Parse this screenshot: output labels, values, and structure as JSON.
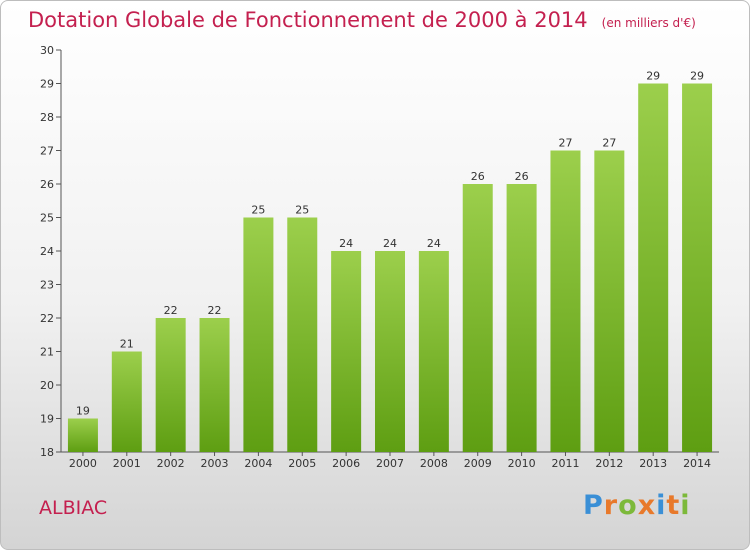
{
  "title": "Dotation Globale de Fonctionnement de 2000 à 2014",
  "unit": "(en milliers d'€)",
  "commune": "ALBIAC",
  "logo_text": "Proxiti",
  "colors": {
    "title": "#c4204f",
    "bar_top": "#9ccf4c",
    "bar_bottom": "#5e9e12",
    "logo": [
      "#3a8fd6",
      "#e8792b",
      "#7cb93a",
      "#e8792b",
      "#3a8fd6",
      "#e8792b",
      "#7cb93a"
    ]
  },
  "chart_data": {
    "type": "bar",
    "categories": [
      "2000",
      "2001",
      "2002",
      "2003",
      "2004",
      "2005",
      "2006",
      "2007",
      "2008",
      "2009",
      "2010",
      "2011",
      "2012",
      "2013",
      "2014"
    ],
    "values": [
      19,
      21,
      22,
      22,
      25,
      25,
      24,
      24,
      24,
      26,
      26,
      27,
      27,
      29,
      29
    ],
    "ylim": [
      18,
      30
    ],
    "yticks": [
      18,
      19,
      20,
      21,
      22,
      23,
      24,
      25,
      26,
      27,
      28,
      29,
      30
    ],
    "grid": false,
    "data_labels": true
  }
}
